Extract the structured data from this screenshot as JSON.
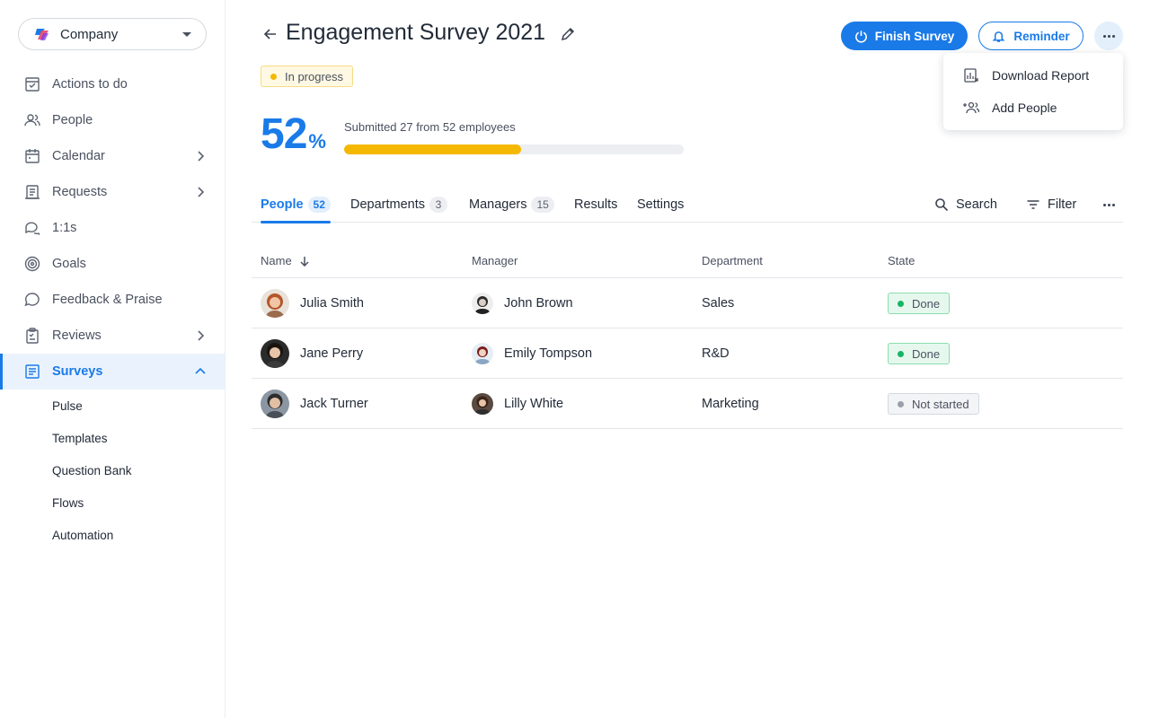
{
  "sidebar": {
    "company": "Company",
    "items": [
      {
        "label": "Actions to do",
        "icon": "checkbox-icon"
      },
      {
        "label": "People",
        "icon": "people-icon"
      },
      {
        "label": "Calendar",
        "icon": "calendar-icon"
      },
      {
        "label": "Requests",
        "icon": "requests-icon"
      },
      {
        "label": "1:1s",
        "icon": "chat-bubbles-icon"
      },
      {
        "label": "Goals",
        "icon": "target-icon"
      },
      {
        "label": "Feedback & Praise",
        "icon": "feedback-icon"
      },
      {
        "label": "Reviews",
        "icon": "clipboard-icon"
      },
      {
        "label": "Surveys",
        "icon": "survey-icon"
      }
    ],
    "sub_items": [
      "Pulse",
      "Templates",
      "Question Bank",
      "Flows",
      "Automation"
    ]
  },
  "header": {
    "title": "Engagement Survey 2021",
    "status": "In progress",
    "finish_label": "Finish Survey",
    "reminder_label": "Reminder"
  },
  "menu": {
    "items": [
      "Download Report",
      "Add People"
    ]
  },
  "progress": {
    "percent": "52",
    "percent_sign": "%",
    "fraction": 0.52,
    "submitted_text": "Submitted 27 from 52 employees"
  },
  "tabs": [
    {
      "label": "People",
      "count": "52"
    },
    {
      "label": "Departments",
      "count": "3"
    },
    {
      "label": "Managers",
      "count": "15"
    },
    {
      "label": "Results",
      "count": ""
    },
    {
      "label": "Settings",
      "count": ""
    }
  ],
  "tools": {
    "search": "Search",
    "filter": "Filter"
  },
  "table": {
    "columns": [
      "Name",
      "Manager",
      "Department",
      "State"
    ],
    "rows": [
      {
        "name": "Julia Smith",
        "manager": "John Brown",
        "department": "Sales",
        "state": "Done"
      },
      {
        "name": "Jane Perry",
        "manager": "Emily Tompson",
        "department": "R&D",
        "state": "Done"
      },
      {
        "name": "Jack Turner",
        "manager": "Lilly White",
        "department": "Marketing",
        "state": "Not started"
      }
    ]
  },
  "colors": {
    "accent": "#1a7ae8",
    "progress": "#f5b800",
    "done": "#17b466",
    "not_started": "#9aa0aa"
  }
}
